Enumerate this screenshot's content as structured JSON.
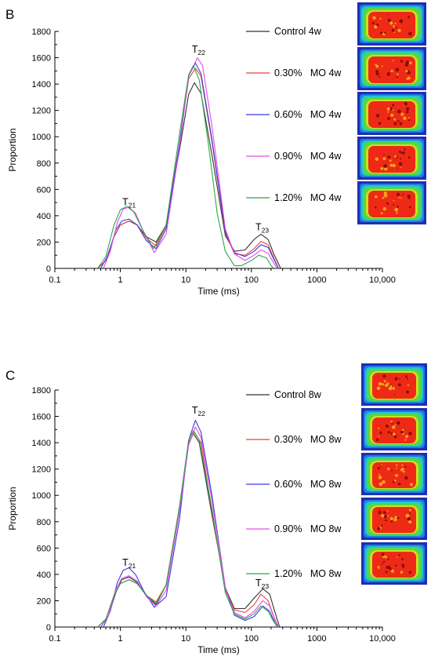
{
  "chart_data": [
    {
      "panel_label": "B",
      "type": "line",
      "xscale": "log",
      "xlim": [
        0.1,
        10000
      ],
      "ylim": [
        0,
        1800
      ],
      "x_ticks": [
        0.1,
        1,
        10,
        100,
        1000,
        10000
      ],
      "x_tick_labels": [
        "0.1",
        "1",
        "10",
        "100",
        "1000",
        "10,000"
      ],
      "y_ticks": [
        0,
        200,
        400,
        600,
        800,
        1000,
        1200,
        1400,
        1600,
        1800
      ],
      "y_tick_labels": [
        "0",
        "200",
        "400",
        "600",
        "800",
        "1000",
        "1200",
        "1400",
        "1600",
        "1800"
      ],
      "xlabel": "Time (ms)",
      "ylabel": "Proportion",
      "peak_labels": [
        {
          "main": "T",
          "sub": "21",
          "x": 1.3,
          "y": 480
        },
        {
          "main": "T",
          "sub": "22",
          "x": 15,
          "y": 1640
        },
        {
          "main": "T",
          "sub": "23",
          "x": 140,
          "y": 290
        }
      ],
      "series": [
        {
          "name": "Control 4w",
          "color": "#333333",
          "values": [
            [
              0.45,
              0
            ],
            [
              0.6,
              60
            ],
            [
              0.8,
              240
            ],
            [
              1.0,
              330
            ],
            [
              1.35,
              360
            ],
            [
              1.8,
              330
            ],
            [
              2.5,
              240
            ],
            [
              3.5,
              200
            ],
            [
              5,
              330
            ],
            [
              8,
              900
            ],
            [
              11,
              1320
            ],
            [
              13.5,
              1410
            ],
            [
              17,
              1330
            ],
            [
              25,
              860
            ],
            [
              40,
              250
            ],
            [
              55,
              130
            ],
            [
              80,
              140
            ],
            [
              110,
              220
            ],
            [
              140,
              260
            ],
            [
              180,
              220
            ],
            [
              220,
              110
            ],
            [
              280,
              0
            ]
          ]
        },
        {
          "name": "0.30%   MO 4w",
          "color": "#e8413a",
          "values": [
            [
              0.45,
              0
            ],
            [
              0.6,
              60
            ],
            [
              0.8,
              240
            ],
            [
              1.0,
              330
            ],
            [
              1.35,
              360
            ],
            [
              1.8,
              330
            ],
            [
              2.5,
              230
            ],
            [
              3.5,
              170
            ],
            [
              5,
              320
            ],
            [
              8,
              950
            ],
            [
              11,
              1440
            ],
            [
              14,
              1520
            ],
            [
              17,
              1460
            ],
            [
              25,
              960
            ],
            [
              40,
              270
            ],
            [
              55,
              110
            ],
            [
              80,
              100
            ],
            [
              110,
              150
            ],
            [
              140,
              205
            ],
            [
              180,
              180
            ],
            [
              220,
              80
            ],
            [
              260,
              0
            ]
          ]
        },
        {
          "name": "0.60%   MO 4w",
          "color": "#3a3ae0",
          "values": [
            [
              0.5,
              0
            ],
            [
              0.65,
              100
            ],
            [
              0.85,
              290
            ],
            [
              1.05,
              360
            ],
            [
              1.35,
              375
            ],
            [
              1.8,
              330
            ],
            [
              2.5,
              210
            ],
            [
              3.5,
              150
            ],
            [
              5,
              300
            ],
            [
              8,
              950
            ],
            [
              11,
              1460
            ],
            [
              14,
              1560
            ],
            [
              17,
              1480
            ],
            [
              25,
              980
            ],
            [
              40,
              280
            ],
            [
              55,
              120
            ],
            [
              80,
              90
            ],
            [
              110,
              130
            ],
            [
              140,
              180
            ],
            [
              180,
              160
            ],
            [
              220,
              70
            ],
            [
              260,
              0
            ]
          ]
        },
        {
          "name": "0.90%   MO 4w",
          "color": "#e64ae6",
          "values": [
            [
              0.55,
              0
            ],
            [
              0.7,
              130
            ],
            [
              0.9,
              350
            ],
            [
              1.1,
              450
            ],
            [
              1.35,
              465
            ],
            [
              1.7,
              420
            ],
            [
              2.3,
              270
            ],
            [
              3.3,
              120
            ],
            [
              5,
              260
            ],
            [
              8,
              920
            ],
            [
              11,
              1460
            ],
            [
              15,
              1600
            ],
            [
              18,
              1540
            ],
            [
              25,
              1080
            ],
            [
              40,
              300
            ],
            [
              55,
              110
            ],
            [
              80,
              60
            ],
            [
              110,
              100
            ],
            [
              140,
              140
            ],
            [
              180,
              115
            ],
            [
              220,
              40
            ],
            [
              250,
              0
            ]
          ]
        },
        {
          "name": "1.20%   MO 4w",
          "color": "#2aa84a",
          "values": [
            [
              0.45,
              0
            ],
            [
              0.6,
              90
            ],
            [
              0.8,
              330
            ],
            [
              1.0,
              445
            ],
            [
              1.25,
              470
            ],
            [
              1.6,
              430
            ],
            [
              2.2,
              290
            ],
            [
              3.2,
              150
            ],
            [
              5,
              330
            ],
            [
              8,
              1020
            ],
            [
              11,
              1470
            ],
            [
              13,
              1540
            ],
            [
              16,
              1430
            ],
            [
              22,
              950
            ],
            [
              30,
              420
            ],
            [
              40,
              130
            ],
            [
              55,
              20
            ],
            [
              70,
              20
            ],
            [
              100,
              60
            ],
            [
              130,
              100
            ],
            [
              170,
              80
            ],
            [
              200,
              20
            ],
            [
              220,
              0
            ]
          ]
        }
      ]
    },
    {
      "panel_label": "C",
      "type": "line",
      "xscale": "log",
      "xlim": [
        0.1,
        10000
      ],
      "ylim": [
        0,
        1800
      ],
      "x_ticks": [
        0.1,
        1,
        10,
        100,
        1000,
        10000
      ],
      "x_tick_labels": [
        "0.1",
        "1",
        "10",
        "100",
        "1000",
        "10,000"
      ],
      "y_ticks": [
        0,
        200,
        400,
        600,
        800,
        1000,
        1200,
        1400,
        1600,
        1800
      ],
      "y_tick_labels": [
        "0",
        "200",
        "400",
        "600",
        "800",
        "1000",
        "1200",
        "1400",
        "1600",
        "1800"
      ],
      "xlabel": "Time (ms)",
      "ylabel": "Proportion",
      "peak_labels": [
        {
          "main": "T",
          "sub": "21",
          "x": 1.3,
          "y": 465
        },
        {
          "main": "T",
          "sub": "22",
          "x": 15,
          "y": 1620
        },
        {
          "main": "T",
          "sub": "23",
          "x": 140,
          "y": 310
        }
      ],
      "series": [
        {
          "name": "Control 8w",
          "color": "#333333",
          "values": [
            [
              0.5,
              0
            ],
            [
              0.65,
              80
            ],
            [
              0.85,
              260
            ],
            [
              1.05,
              360
            ],
            [
              1.35,
              380
            ],
            [
              1.8,
              340
            ],
            [
              2.5,
              240
            ],
            [
              3.5,
              170
            ],
            [
              5,
              320
            ],
            [
              8,
              900
            ],
            [
              11,
              1400
            ],
            [
              13,
              1470
            ],
            [
              16,
              1400
            ],
            [
              25,
              850
            ],
            [
              40,
              300
            ],
            [
              55,
              140
            ],
            [
              80,
              140
            ],
            [
              110,
              220
            ],
            [
              150,
              290
            ],
            [
              190,
              250
            ],
            [
              230,
              110
            ],
            [
              270,
              0
            ]
          ]
        },
        {
          "name": "0.30%   MO 8w",
          "color": "#e8413a",
          "values": [
            [
              0.45,
              0
            ],
            [
              0.6,
              60
            ],
            [
              0.8,
              240
            ],
            [
              1.0,
              330
            ],
            [
              1.35,
              360
            ],
            [
              1.8,
              330
            ],
            [
              2.5,
              240
            ],
            [
              3.5,
              190
            ],
            [
              5,
              320
            ],
            [
              8,
              900
            ],
            [
              11,
              1400
            ],
            [
              13.5,
              1480
            ],
            [
              17,
              1400
            ],
            [
              25,
              880
            ],
            [
              40,
              280
            ],
            [
              55,
              130
            ],
            [
              80,
              110
            ],
            [
              110,
              170
            ],
            [
              140,
              250
            ],
            [
              180,
              200
            ],
            [
              220,
              80
            ],
            [
              260,
              0
            ]
          ]
        },
        {
          "name": "0.60%   MO 8w",
          "color": "#3a3ae0",
          "values": [
            [
              0.55,
              0
            ],
            [
              0.7,
              120
            ],
            [
              0.9,
              340
            ],
            [
              1.1,
              430
            ],
            [
              1.35,
              450
            ],
            [
              1.7,
              400
            ],
            [
              2.3,
              270
            ],
            [
              3.3,
              150
            ],
            [
              5,
              230
            ],
            [
              8,
              820
            ],
            [
              11,
              1420
            ],
            [
              14,
              1570
            ],
            [
              17,
              1480
            ],
            [
              25,
              1000
            ],
            [
              40,
              300
            ],
            [
              55,
              90
            ],
            [
              80,
              50
            ],
            [
              110,
              80
            ],
            [
              150,
              160
            ],
            [
              190,
              120
            ],
            [
              230,
              30
            ],
            [
              260,
              0
            ]
          ]
        },
        {
          "name": "0.90%   MO 8w",
          "color": "#e64ae6",
          "values": [
            [
              0.5,
              0
            ],
            [
              0.65,
              80
            ],
            [
              0.85,
              280
            ],
            [
              1.05,
              370
            ],
            [
              1.35,
              390
            ],
            [
              1.8,
              350
            ],
            [
              2.5,
              230
            ],
            [
              3.5,
              160
            ],
            [
              5,
              280
            ],
            [
              8,
              880
            ],
            [
              11,
              1380
            ],
            [
              14,
              1520
            ],
            [
              17,
              1440
            ],
            [
              25,
              960
            ],
            [
              40,
              300
            ],
            [
              55,
              110
            ],
            [
              80,
              70
            ],
            [
              110,
              120
            ],
            [
              150,
              200
            ],
            [
              190,
              160
            ],
            [
              230,
              50
            ],
            [
              260,
              0
            ]
          ]
        },
        {
          "name": "1.20%   MO 8w",
          "color": "#2aa84a",
          "values": [
            [
              0.45,
              0
            ],
            [
              0.6,
              60
            ],
            [
              0.8,
              240
            ],
            [
              1.0,
              330
            ],
            [
              1.35,
              360
            ],
            [
              1.8,
              330
            ],
            [
              2.5,
              240
            ],
            [
              3.5,
              180
            ],
            [
              5,
              320
            ],
            [
              8,
              920
            ],
            [
              11,
              1420
            ],
            [
              13,
              1490
            ],
            [
              16,
              1420
            ],
            [
              25,
              900
            ],
            [
              40,
              260
            ],
            [
              55,
              100
            ],
            [
              80,
              60
            ],
            [
              110,
              100
            ],
            [
              140,
              160
            ],
            [
              180,
              120
            ],
            [
              220,
              40
            ],
            [
              250,
              0
            ]
          ]
        }
      ]
    }
  ]
}
